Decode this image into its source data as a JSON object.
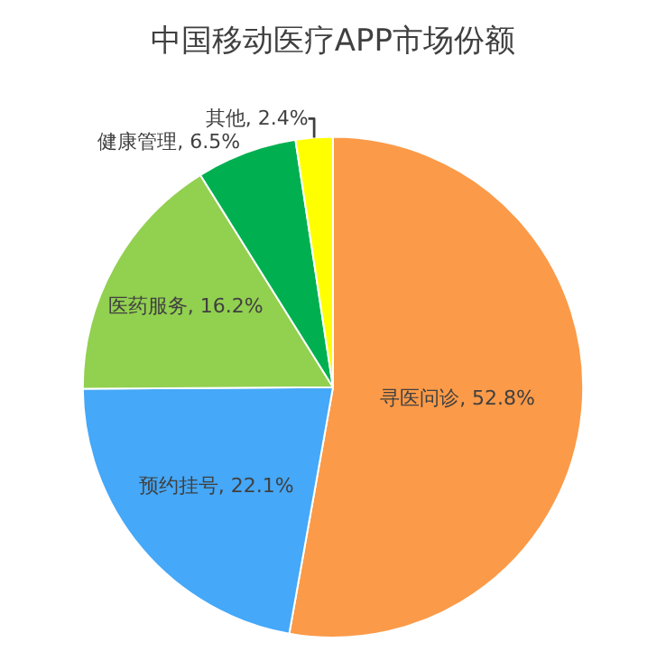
{
  "chart_data": {
    "type": "pie",
    "title": "中国移动医疗APP市场份额",
    "categories": [
      "寻医问诊",
      "预约挂号",
      "医药服务",
      "健康管理",
      "其他"
    ],
    "values": [
      52.8,
      22.1,
      16.2,
      6.5,
      2.4
    ],
    "value_labels": [
      "52.8%",
      "22.1%",
      "16.2%",
      "6.5%",
      "2.4%"
    ],
    "colors": [
      "#fb9a48",
      "#45a8f8",
      "#92d050",
      "#00b050",
      "#ffff00"
    ],
    "legend": false
  }
}
